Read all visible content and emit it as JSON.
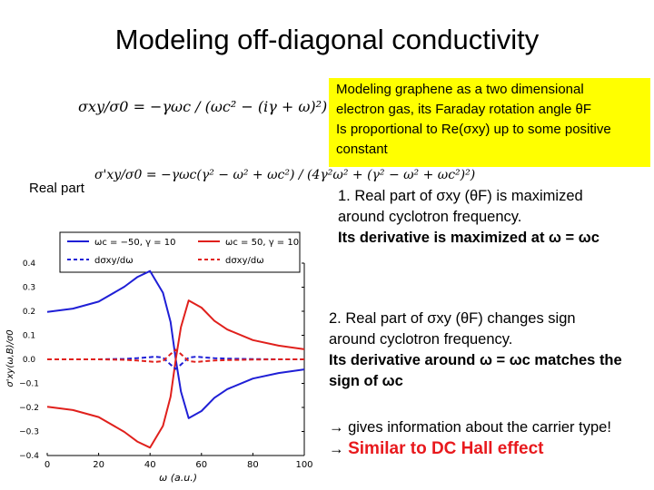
{
  "slide": {
    "title": "Modeling off-diagonal conductivity",
    "equation_1": "σxy/σ0 = −γωc / (ωc² − (iγ + ω)²)",
    "equation_2": "σ'xy/σ0 = −γωc(γ² − ω² + ωc²) / (4γ²ω² + (γ² − ω² + ωc²)²)",
    "real_part_label": "Real part",
    "yellow_box": {
      "line1": "Modeling graphene as a two dimensional",
      "line2": "electron gas, its Faraday rotation angle θF",
      "line3": "Is proportional to Re(σxy) up to some positive",
      "line4": "constant"
    },
    "point1": {
      "text1": "1.  Real part of σxy (θF) is maximized",
      "text2": "around cyclotron frequency.",
      "text3": "Its derivative is maximized at ω = ωc"
    },
    "point2": {
      "text1": "2.  Real part of σxy (θF) changes sign",
      "text2": "around cyclotron frequency.",
      "text3": "Its derivative around ω = ωc matches the",
      "text4": "sign of ωc"
    },
    "arrows": {
      "line1": "gives information about the carrier type!",
      "line2": "Similar to DC Hall effect",
      "arrow_glyph": "→"
    }
  },
  "chart_data": {
    "type": "line",
    "xlabel": "ω (a.u.)",
    "ylabel": "σ'xy(ω,B)/σ0",
    "xlim": [
      0,
      100
    ],
    "ylim": [
      -0.4,
      0.4
    ],
    "x_ticks": [
      "0",
      "20",
      "40",
      "60",
      "80",
      "100"
    ],
    "y_ticks": [
      "−0.4",
      "−0.3",
      "−0.2",
      "−0.1",
      "0.0",
      "0.1",
      "0.2",
      "0.3",
      "0.4"
    ],
    "legend_position": "top",
    "colors": {
      "blue": "#1f1fd6",
      "red": "#e0201c"
    },
    "series": [
      {
        "name": "ωc = −50, γ = 10",
        "color": "#1f1fd6",
        "dash": false,
        "x": [
          0,
          10,
          20,
          30,
          35,
          40,
          45,
          48,
          50,
          52,
          55,
          60,
          65,
          70,
          80,
          90,
          100
        ],
        "y": [
          0.197,
          0.211,
          0.24,
          0.302,
          0.342,
          0.367,
          0.277,
          0.155,
          0.0,
          -0.134,
          -0.245,
          -0.215,
          -0.16,
          -0.124,
          -0.08,
          -0.057,
          -0.042
        ]
      },
      {
        "name": "ωc = 50, γ = 10",
        "color": "#e0201c",
        "dash": false,
        "x": [
          0,
          10,
          20,
          30,
          35,
          40,
          45,
          48,
          50,
          52,
          55,
          60,
          65,
          70,
          80,
          90,
          100
        ],
        "y": [
          -0.197,
          -0.211,
          -0.24,
          -0.302,
          -0.342,
          -0.367,
          -0.277,
          -0.155,
          0.0,
          0.134,
          0.245,
          0.215,
          0.16,
          0.124,
          0.08,
          0.057,
          0.042
        ]
      },
      {
        "name": "dσxy/dω",
        "color": "#1f1fd6",
        "dash": true,
        "x": [
          0,
          10,
          20,
          30,
          35,
          40,
          42,
          45,
          48,
          50,
          52,
          55,
          58,
          60,
          65,
          70,
          80,
          90,
          100
        ],
        "y": [
          0.0,
          0.0,
          0.0,
          0.002,
          0.005,
          0.009,
          0.011,
          0.007,
          -0.022,
          -0.04,
          -0.022,
          0.007,
          0.011,
          0.009,
          0.005,
          0.003,
          0.001,
          0.0,
          0.0
        ]
      },
      {
        "name": "dσxy/dω",
        "color": "#e0201c",
        "dash": true,
        "x": [
          0,
          10,
          20,
          30,
          35,
          40,
          42,
          45,
          48,
          50,
          52,
          55,
          58,
          60,
          65,
          70,
          80,
          90,
          100
        ],
        "y": [
          0.0,
          0.0,
          0.0,
          -0.002,
          -0.005,
          -0.009,
          -0.011,
          -0.007,
          0.022,
          0.04,
          0.022,
          -0.007,
          -0.011,
          -0.009,
          -0.005,
          -0.003,
          -0.001,
          0.0,
          0.0
        ]
      }
    ]
  }
}
